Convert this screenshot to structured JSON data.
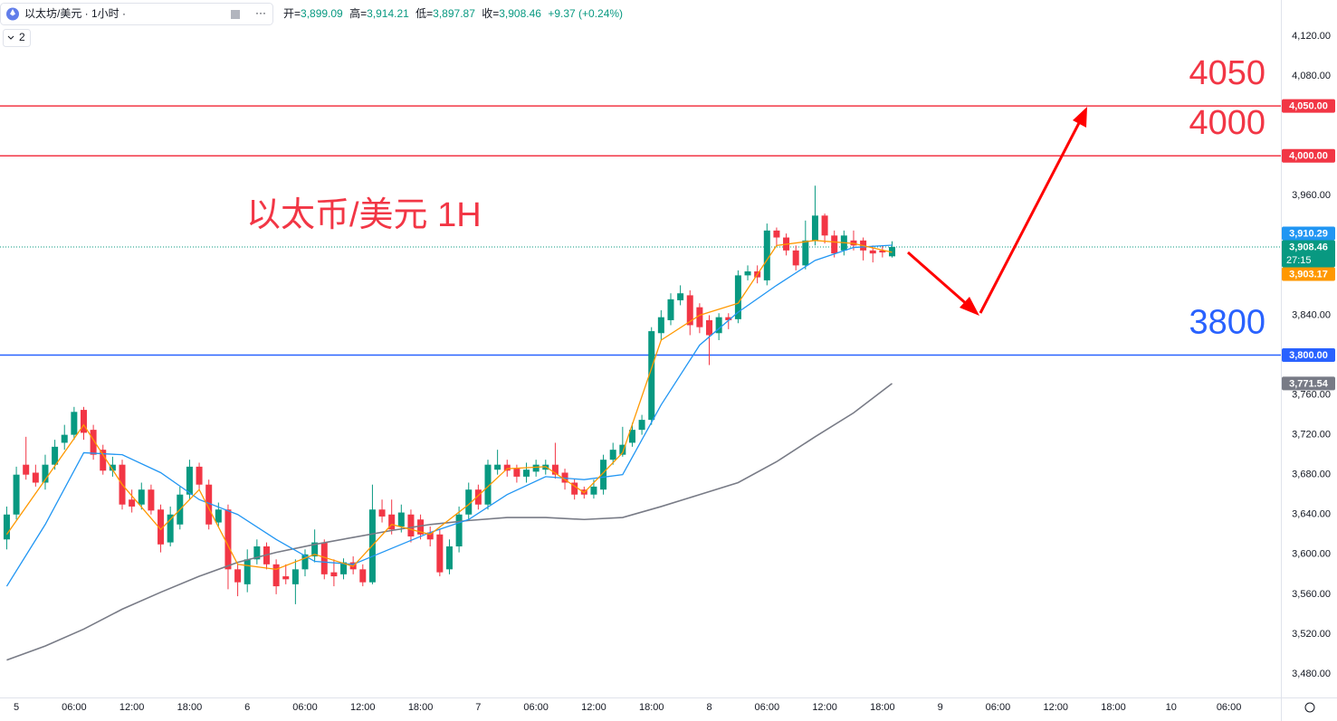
{
  "header": {
    "symbol": "以太坊/美元 · 1小时 ·",
    "indicator_count": "2",
    "ohlc": [
      {
        "label": "开=",
        "value": "3,899.09"
      },
      {
        "label": "高=",
        "value": "3,914.21"
      },
      {
        "label": "低=",
        "value": "3,897.87"
      },
      {
        "label": "收=",
        "value": "3,908.46"
      }
    ],
    "change": "+9.37 (+0.24%)"
  },
  "chart_data": {
    "type": "candlestick",
    "annotation": {
      "text": "以太币/美元 1H",
      "color": "#f23645"
    },
    "up_color": "#089981",
    "down_color": "#f23645",
    "x": [
      -1,
      0,
      1,
      2,
      3,
      4,
      5,
      6,
      7,
      8,
      9,
      10,
      11,
      12,
      13,
      14,
      15,
      16,
      17,
      18,
      19,
      20,
      21,
      22,
      23,
      24,
      25,
      26,
      27,
      28,
      29,
      30,
      31,
      32,
      33,
      34,
      35,
      36,
      37,
      38,
      39,
      40,
      41,
      42,
      43,
      44,
      45,
      46,
      47,
      48,
      49,
      50,
      51,
      52,
      53,
      54,
      55,
      56,
      57,
      58,
      59,
      60,
      61,
      62,
      63,
      64,
      65,
      66,
      67,
      68,
      69,
      70,
      71,
      72,
      73,
      74,
      75,
      76,
      77,
      78,
      79,
      80,
      81,
      82,
      83,
      84,
      85,
      86,
      87,
      88,
      89,
      90,
      91
    ],
    "open": [
      3615,
      3640,
      3690,
      3682,
      3672,
      3690,
      3712,
      3720,
      3745,
      3725,
      3705,
      3684,
      3690,
      3655,
      3650,
      3665,
      3645,
      3612,
      3630,
      3660,
      3688,
      3670,
      3632,
      3645,
      3585,
      3570,
      3595,
      3608,
      3590,
      3578,
      3570,
      3585,
      3598,
      3612,
      3582,
      3580,
      3592,
      3585,
      3572,
      3645,
      3640,
      3628,
      3640,
      3635,
      3622,
      3620,
      3585,
      3608,
      3640,
      3665,
      3650,
      3685,
      3690,
      3686,
      3678,
      3683,
      3685,
      3690,
      3682,
      3672,
      3665,
      3660,
      3665,
      3695,
      3700,
      3712,
      3725,
      3735,
      3822,
      3835,
      3855,
      3860,
      3848,
      3835,
      3822,
      3838,
      3836,
      3880,
      3884,
      3875,
      3925,
      3918,
      3905,
      3890,
      3915,
      3940,
      3920,
      3905,
      3915,
      3915,
      3905,
      3905,
      3899.09
    ],
    "high": [
      3648,
      3688,
      3718,
      3690,
      3700,
      3715,
      3730,
      3748,
      3748,
      3730,
      3710,
      3698,
      3695,
      3665,
      3672,
      3670,
      3650,
      3648,
      3668,
      3695,
      3692,
      3675,
      3652,
      3650,
      3590,
      3605,
      3615,
      3612,
      3595,
      3590,
      3595,
      3605,
      3625,
      3615,
      3595,
      3596,
      3598,
      3590,
      3670,
      3655,
      3655,
      3650,
      3645,
      3640,
      3628,
      3625,
      3615,
      3648,
      3672,
      3670,
      3695,
      3705,
      3695,
      3690,
      3692,
      3695,
      3695,
      3712,
      3686,
      3676,
      3668,
      3675,
      3700,
      3712,
      3728,
      3732,
      3740,
      3828,
      3845,
      3862,
      3870,
      3865,
      3852,
      3840,
      3842,
      3842,
      3885,
      3890,
      3890,
      3932,
      3928,
      3922,
      3910,
      3935,
      3970,
      3942,
      3925,
      3925,
      3925,
      3918,
      3910,
      3910,
      3914.21
    ],
    "low": [
      3605,
      3635,
      3675,
      3668,
      3665,
      3685,
      3705,
      3715,
      3715,
      3695,
      3680,
      3678,
      3645,
      3642,
      3645,
      3640,
      3602,
      3608,
      3625,
      3655,
      3665,
      3625,
      3628,
      3565,
      3558,
      3562,
      3590,
      3585,
      3560,
      3570,
      3550,
      3578,
      3592,
      3575,
      3568,
      3575,
      3580,
      3568,
      3570,
      3632,
      3620,
      3622,
      3612,
      3615,
      3608,
      3578,
      3580,
      3602,
      3635,
      3645,
      3645,
      3680,
      3678,
      3672,
      3672,
      3678,
      3680,
      3676,
      3665,
      3655,
      3656,
      3656,
      3660,
      3690,
      3698,
      3708,
      3720,
      3730,
      3815,
      3830,
      3850,
      3820,
      3822,
      3790,
      3815,
      3826,
      3832,
      3875,
      3872,
      3870,
      3910,
      3900,
      3885,
      3886,
      3910,
      3912,
      3898,
      3900,
      3905,
      3895,
      3893,
      3898,
      3897.87
    ],
    "close": [
      3640,
      3680,
      3680,
      3672,
      3690,
      3708,
      3720,
      3743,
      3722,
      3700,
      3684,
      3690,
      3650,
      3648,
      3665,
      3644,
      3610,
      3640,
      3660,
      3688,
      3670,
      3630,
      3645,
      3585,
      3572,
      3595,
      3608,
      3590,
      3568,
      3575,
      3585,
      3600,
      3612,
      3580,
      3578,
      3592,
      3585,
      3572,
      3645,
      3638,
      3625,
      3642,
      3618,
      3620,
      3615,
      3582,
      3608,
      3640,
      3665,
      3650,
      3690,
      3690,
      3684,
      3678,
      3685,
      3690,
      3690,
      3680,
      3672,
      3660,
      3660,
      3668,
      3695,
      3705,
      3710,
      3725,
      3735,
      3824,
      3838,
      3856,
      3862,
      3830,
      3828,
      3820,
      3838,
      3835,
      3880,
      3884,
      3878,
      3925,
      3918,
      3905,
      3890,
      3915,
      3940,
      3920,
      3902,
      3920,
      3910,
      3905,
      3902,
      3903,
      3908.46
    ],
    "lines": [
      {
        "color": "#787b86",
        "x": [
          -1,
          3,
          7,
          11,
          15,
          19,
          23,
          27,
          31,
          35,
          39,
          43,
          47,
          51,
          55,
          59,
          63,
          67,
          71,
          75,
          79,
          83,
          87,
          91
        ],
        "values": [
          3494,
          3508,
          3525,
          3545,
          3562,
          3578,
          3592,
          3602,
          3610,
          3617,
          3624,
          3630,
          3634,
          3637,
          3637,
          3635,
          3637,
          3648,
          3660,
          3672,
          3693,
          3718,
          3742,
          3771.54
        ]
      },
      {
        "color": "#2196f3",
        "x": [
          -1,
          3,
          7,
          11,
          15,
          19,
          23,
          27,
          31,
          35,
          39,
          43,
          47,
          51,
          55,
          59,
          63,
          67,
          71,
          75,
          79,
          83,
          87,
          91
        ],
        "values": [
          3568,
          3630,
          3702,
          3700,
          3682,
          3655,
          3640,
          3615,
          3593,
          3590,
          3606,
          3622,
          3635,
          3660,
          3678,
          3675,
          3680,
          3750,
          3810,
          3843,
          3870,
          3895,
          3908,
          3910.29
        ]
      },
      {
        "color": "#ff9800",
        "x": [
          -1,
          3,
          7,
          11,
          15,
          19,
          23,
          27,
          31,
          35,
          39,
          43,
          47,
          51,
          55,
          59,
          63,
          67,
          71,
          75,
          79,
          83,
          87,
          91
        ],
        "values": [
          3620,
          3675,
          3730,
          3670,
          3625,
          3665,
          3590,
          3585,
          3600,
          3588,
          3630,
          3620,
          3650,
          3686,
          3688,
          3662,
          3702,
          3815,
          3840,
          3852,
          3910,
          3915,
          3912,
          3903.17
        ]
      }
    ],
    "xlim": [
      -1.7,
      131.4
    ],
    "ylim": [
      3457.3,
      4129.1
    ],
    "xticks": [
      {
        "value": 0,
        "label": "5"
      },
      {
        "value": 6,
        "label": "06:00"
      },
      {
        "value": 12,
        "label": "12:00"
      },
      {
        "value": 18,
        "label": "18:00"
      },
      {
        "value": 24,
        "label": "6"
      },
      {
        "value": 30,
        "label": "06:00"
      },
      {
        "value": 36,
        "label": "12:00"
      },
      {
        "value": 42,
        "label": "18:00"
      },
      {
        "value": 48,
        "label": "7"
      },
      {
        "value": 54,
        "label": "06:00"
      },
      {
        "value": 60,
        "label": "12:00"
      },
      {
        "value": 66,
        "label": "18:00"
      },
      {
        "value": 72,
        "label": "8"
      },
      {
        "value": 78,
        "label": "06:00"
      },
      {
        "value": 84,
        "label": "12:00"
      },
      {
        "value": 90,
        "label": "18:00"
      },
      {
        "value": 96,
        "label": "9"
      },
      {
        "value": 102,
        "label": "06:00"
      },
      {
        "value": 108,
        "label": "12:00"
      },
      {
        "value": 114,
        "label": "18:00"
      },
      {
        "value": 120,
        "label": "10"
      },
      {
        "value": 126,
        "label": "06:00"
      }
    ],
    "yticks": [
      {
        "value": 4120,
        "label": "4,120.00"
      },
      {
        "value": 4080,
        "label": "4,080.00"
      },
      {
        "value": 3960,
        "label": "3,960.00"
      },
      {
        "value": 3840,
        "label": "3,840.00"
      },
      {
        "value": 3760,
        "label": "3,760.00"
      },
      {
        "value": 3720,
        "label": "3,720.00"
      },
      {
        "value": 3680,
        "label": "3,680.00"
      },
      {
        "value": 3640,
        "label": "3,640.00"
      },
      {
        "value": 3600,
        "label": "3,600.00"
      },
      {
        "value": 3560,
        "label": "3,560.00"
      },
      {
        "value": 3520,
        "label": "3,520.00"
      },
      {
        "value": 3480,
        "label": "3,480.00"
      }
    ],
    "grid": false,
    "price_tags": [
      {
        "value": 4050,
        "label": "4,050.00",
        "color": "#f23645",
        "line_style": "solid",
        "big_label_color": "#f23645"
      },
      {
        "value": 4000,
        "label": "4,000.00",
        "color": "#f23645",
        "line_style": "solid",
        "big_label_color": "#f23645"
      },
      {
        "value": 3910.29,
        "label": "3,910.29",
        "color": "#2196f3"
      },
      {
        "value": 3908.46,
        "label": "3,908.46",
        "color": "#089981",
        "line_style": "dotted",
        "countdown": "27:15"
      },
      {
        "value": 3903.17,
        "label": "3,903.17",
        "color": "#ff9800"
      },
      {
        "value": 3800,
        "label": "3,800.00",
        "color": "#2962ff",
        "line_style": "solid",
        "big_label_color": "#2962ff"
      },
      {
        "value": 3771.54,
        "label": "3,771.54",
        "color": "#787b86"
      }
    ]
  }
}
